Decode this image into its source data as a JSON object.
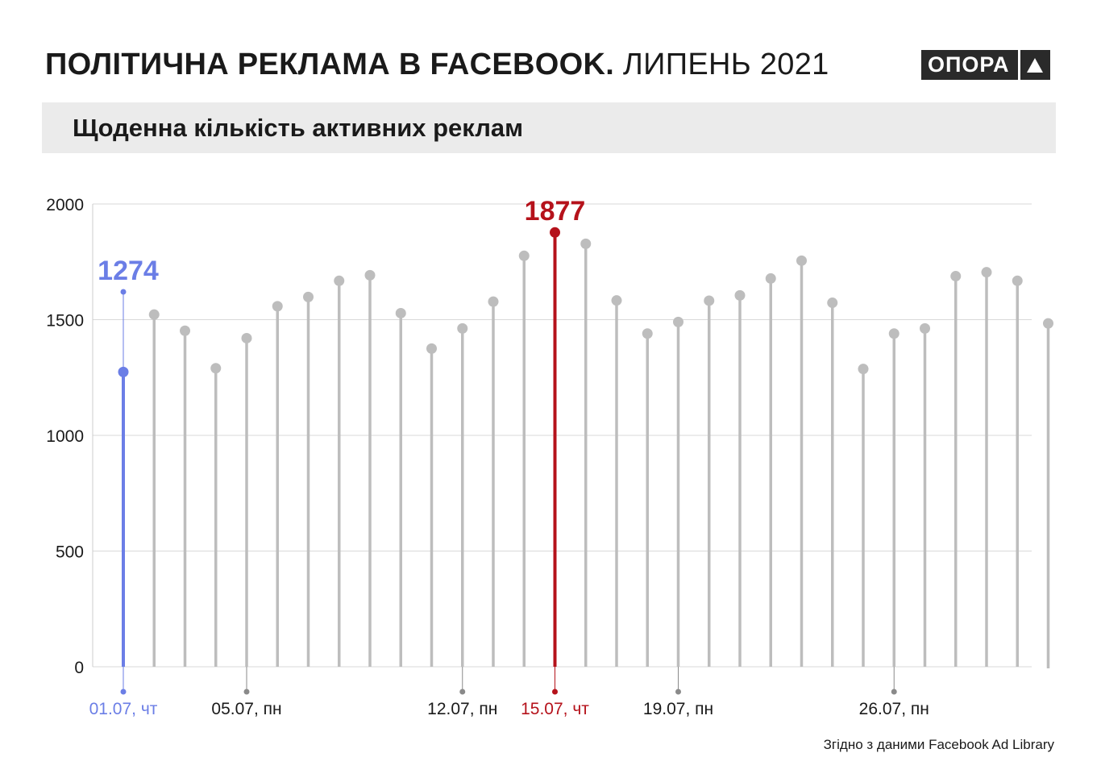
{
  "header": {
    "title_bold": "ПОЛІТИЧНА РЕКЛАМА В FACEBOOK.",
    "title_light": "ЛИПЕНЬ 2021",
    "logo_text": "ОПОРА",
    "subtitle": "Щоденна кількість активних реклам"
  },
  "footer": {
    "source": "Згідно з даними Facebook Ad Library"
  },
  "colors": {
    "grey": "#bdbdbd",
    "blue": "#6b7ee6",
    "red": "#b5121b",
    "grid": "#d9d9d9"
  },
  "chart_data": {
    "type": "lollipop",
    "title": "Щоденна кількість активних реклам",
    "ylim": [
      0,
      2000
    ],
    "yticks": [
      0,
      500,
      1000,
      1500,
      2000
    ],
    "grid": true,
    "x": [
      "01.07",
      "02.07",
      "03.07",
      "04.07",
      "05.07",
      "06.07",
      "07.07",
      "08.07",
      "09.07",
      "10.07",
      "11.07",
      "12.07",
      "13.07",
      "14.07",
      "15.07",
      "16.07",
      "17.07",
      "18.07",
      "19.07",
      "20.07",
      "21.07",
      "22.07",
      "23.07",
      "24.07",
      "25.07",
      "26.07",
      "27.07",
      "28.07",
      "29.07",
      "30.07",
      "31.07"
    ],
    "values": [
      1274,
      1522,
      1452,
      1290,
      1420,
      1558,
      1598,
      1668,
      1692,
      1528,
      1375,
      1462,
      1578,
      1776,
      1877,
      1828,
      1583,
      1440,
      1490,
      1582,
      1605,
      1678,
      1755,
      1573,
      1287,
      1440,
      1462,
      1688,
      1705,
      1668,
      1484
    ],
    "x_tick_labels": [
      {
        "index": 0,
        "label": "01.07, чт",
        "style": "blue"
      },
      {
        "index": 4,
        "label": "05.07, пн",
        "style": "normal"
      },
      {
        "index": 11,
        "label": "12.07, пн",
        "style": "normal"
      },
      {
        "index": 14,
        "label": "15.07, чт",
        "style": "red"
      },
      {
        "index": 18,
        "label": "19.07, пн",
        "style": "normal"
      },
      {
        "index": 25,
        "label": "26.07, пн",
        "style": "normal"
      }
    ],
    "annotations": [
      {
        "index": 0,
        "label": "1274",
        "style": "blue"
      },
      {
        "index": 14,
        "label": "1877",
        "style": "red"
      }
    ]
  }
}
